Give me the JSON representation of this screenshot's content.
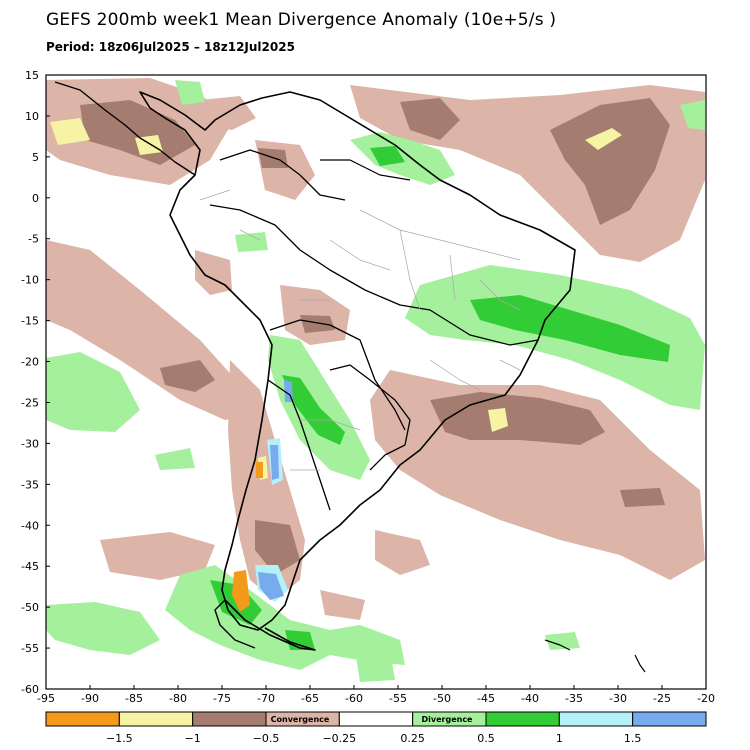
{
  "title": "GEFS 200mb week1 Mean Divergence Anomaly (10e+5/s )",
  "period": "Period: 18z06Jul2025 – 18z12Jul2025",
  "axes": {
    "lat_ticks": [
      "15",
      "10",
      "5",
      "0",
      "-5",
      "-10",
      "-15",
      "-20",
      "-25",
      "-30",
      "-35",
      "-40",
      "-45",
      "-50",
      "-55",
      "-60"
    ],
    "lon_ticks": [
      "-95",
      "-90",
      "-85",
      "-80",
      "-75",
      "-70",
      "-65",
      "-60",
      "-55",
      "-50",
      "-45",
      "-40",
      "-35",
      "-30",
      "-25",
      "-20"
    ]
  },
  "colorbar": {
    "convergence_label": "Convergence",
    "divergence_label": "Divergence",
    "colors": [
      "#f39a1a",
      "#f7f3a4",
      "#a47c70",
      "#dcb4a8",
      "#ffffff",
      "#a4f09c",
      "#32cc37",
      "#b4f0f8",
      "#78aaee"
    ],
    "tick_labels": [
      "−1.5",
      "−1",
      "−0.5",
      "−0.25",
      "0.25",
      "0.5",
      "1",
      "1.5"
    ]
  }
}
